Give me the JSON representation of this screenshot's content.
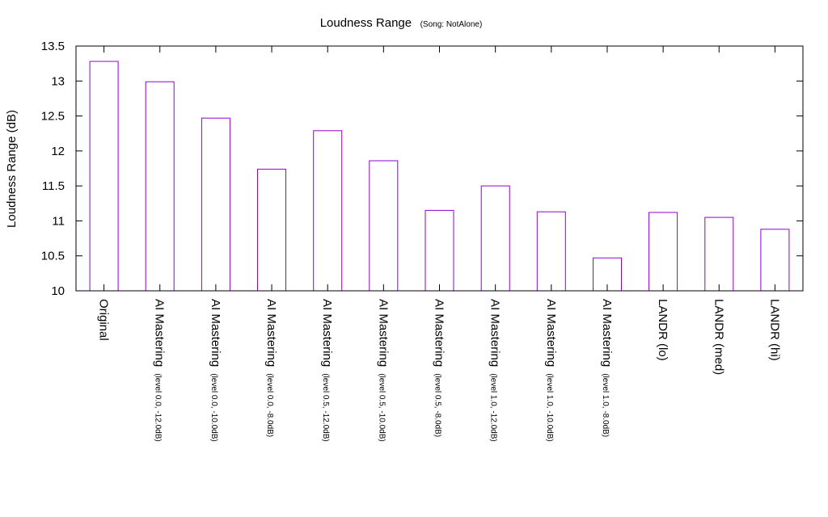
{
  "chart_data": {
    "type": "bar",
    "title": "Loudness Range",
    "subtitle": "(Song: NotAlone)",
    "xlabel": "",
    "ylabel": "Loudness Range (dB)",
    "ylim": [
      10,
      13.5
    ],
    "yticks": [
      "10",
      "10.5",
      "11",
      "11.5",
      "12",
      "12.5",
      "13",
      "13.5"
    ],
    "bar_color": "#9400d3",
    "grid": false,
    "legend": "none",
    "categories": [
      {
        "main": "Original",
        "sub": ""
      },
      {
        "main": "AI Mastering",
        "sub": "(level 0.0, -12.0dB)"
      },
      {
        "main": "AI Mastering",
        "sub": "(level 0.0, -10.0dB)"
      },
      {
        "main": "AI Mastering",
        "sub": "(level 0.0, -8.0dB)"
      },
      {
        "main": "AI Mastering",
        "sub": "(level 0.5, -12.0dB)"
      },
      {
        "main": "AI Mastering",
        "sub": "(level 0.5, -10.0dB)"
      },
      {
        "main": "AI Mastering",
        "sub": "(level 0.5, -8.0dB)"
      },
      {
        "main": "AI Mastering",
        "sub": "(level 1.0, -12.0dB)"
      },
      {
        "main": "AI Mastering",
        "sub": "(level 1.0, -10.0dB)"
      },
      {
        "main": "AI Mastering",
        "sub": "(level 1.0, -8.0dB)"
      },
      {
        "main": "LANDR (lo)",
        "sub": ""
      },
      {
        "main": "LANDR (med)",
        "sub": ""
      },
      {
        "main": "LANDR (hi)",
        "sub": ""
      }
    ],
    "values": [
      13.28,
      12.99,
      12.47,
      11.74,
      12.29,
      11.86,
      11.15,
      11.5,
      11.13,
      10.47,
      11.12,
      11.05,
      10.88
    ]
  }
}
